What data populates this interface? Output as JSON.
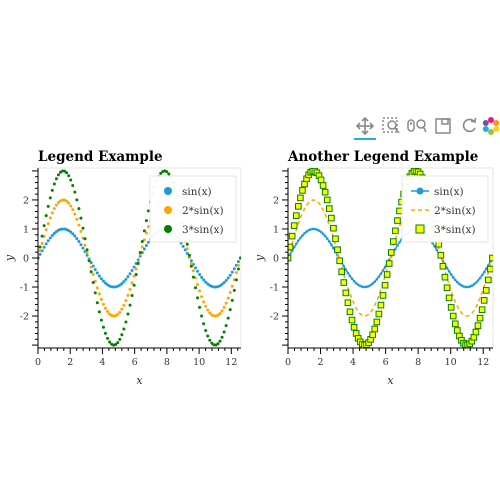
{
  "toolbar": {
    "tools": [
      {
        "name": "pan-tool",
        "icon": "pan-icon",
        "active": true
      },
      {
        "name": "box-zoom-tool",
        "icon": "box-zoom-icon",
        "active": false
      },
      {
        "name": "wheel-zoom-tool",
        "icon": "wheel-zoom-icon",
        "active": false
      },
      {
        "name": "save-tool",
        "icon": "save-icon",
        "active": false
      },
      {
        "name": "reset-tool",
        "icon": "reset-icon",
        "active": false
      },
      {
        "name": "help-tool",
        "icon": "bokeh-logo-icon",
        "active": false
      }
    ],
    "accent": "#26aae1"
  },
  "chart_data": [
    {
      "type": "scatter",
      "title": "Legend Example",
      "xlabel": "x",
      "ylabel": "y",
      "xlim": [
        0,
        12.6
      ],
      "ylim": [
        -3.1,
        3.1
      ],
      "x_ticks": [
        0,
        2,
        4,
        6,
        8,
        10,
        12
      ],
      "y_ticks": [
        -2,
        -1,
        0,
        1,
        2
      ],
      "grid": false,
      "legend_position": "top-right",
      "x": {
        "start": 0,
        "stop": 12.566,
        "count": 100
      },
      "series": [
        {
          "name": "sin(x)",
          "function": "sin(x)",
          "amplitude": 1,
          "color": "#1f9ad6",
          "marker": "circle"
        },
        {
          "name": "2*sin(x)",
          "function": "2*sin(x)",
          "amplitude": 2,
          "color": "#ffa500",
          "marker": "circle"
        },
        {
          "name": "3*sin(x)",
          "function": "3*sin(x)",
          "amplitude": 3,
          "color": "#008000",
          "marker": "circle"
        }
      ]
    },
    {
      "type": "line",
      "title": "Another Legend Example",
      "xlabel": "x",
      "ylabel": "y",
      "xlim": [
        0,
        12.6
      ],
      "ylim": [
        -3.1,
        3.1
      ],
      "x_ticks": [
        0,
        2,
        4,
        6,
        8,
        10,
        12
      ],
      "y_ticks": [
        -2,
        -1,
        0,
        1,
        2
      ],
      "grid": false,
      "legend_position": "top-right",
      "x": {
        "start": 0,
        "stop": 12.566,
        "count": 100
      },
      "series": [
        {
          "name": "sin(x)",
          "function": "sin(x)",
          "amplitude": 1,
          "color": "#1f9ad6",
          "style": "line-with-circles"
        },
        {
          "name": "2*sin(x)",
          "function": "2*sin(x)",
          "amplitude": 2,
          "color": "#ffa500",
          "style": "dashed-line"
        },
        {
          "name": "3*sin(x)",
          "function": "3*sin(x)",
          "amplitude": 3,
          "color": "#008000",
          "style": "squares",
          "fill": "#ffff00"
        }
      ]
    }
  ]
}
